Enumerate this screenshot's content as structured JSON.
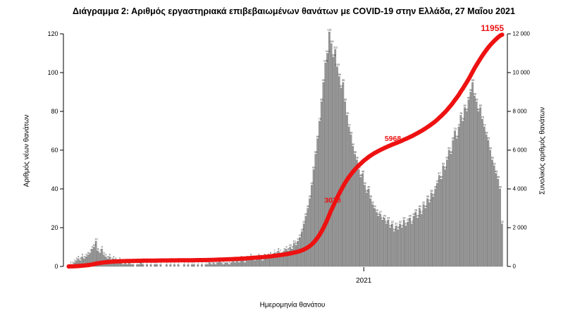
{
  "chart_data": {
    "type": "bar",
    "overlay_type": "line",
    "title": "Διάγραμμα 2: Αριθμός εργαστηριακά επιβεβαιωμένων θανάτων με COVID-19 στην Ελλάδα, 27 Μαΐου 2021",
    "xlabel": "Ημερομηνία θανάτου",
    "ylabel_left": "Αριθμός νέων θανάτων",
    "ylabel_right": "Συνολικός αριθμός θανάτων",
    "x_ticks": [
      {
        "label": "2021",
        "frac": 0.68
      }
    ],
    "ylim_left": [
      0,
      120
    ],
    "ylim_right": [
      0,
      12000
    ],
    "yticks_left": [
      0,
      20,
      40,
      60,
      80,
      100,
      120
    ],
    "ytick_labels_left": [
      "0",
      "20",
      "40",
      "60",
      "80",
      "100",
      "120"
    ],
    "yticks_right": [
      0,
      2000,
      4000,
      6000,
      8000,
      10000,
      12000
    ],
    "ytick_labels_right": [
      "0",
      "2 000",
      "4 000",
      "6 000",
      "8 000",
      "10 000",
      "12 000"
    ],
    "legend": "off",
    "grid": "off",
    "daily_new_deaths": [
      0,
      1,
      1,
      2,
      3,
      4,
      3,
      5,
      4,
      5,
      6,
      7,
      9,
      10,
      13,
      8,
      7,
      9,
      6,
      5,
      4,
      5,
      3,
      4,
      3,
      2,
      3,
      2,
      1,
      2,
      1,
      2,
      1,
      1,
      0,
      1,
      1,
      2,
      1,
      0,
      1,
      0,
      1,
      0,
      1,
      1,
      0,
      1,
      0,
      0,
      1,
      0,
      1,
      0,
      1,
      0,
      1,
      0,
      0,
      1,
      0,
      1,
      0,
      1,
      1,
      0,
      1,
      0,
      1,
      0,
      1,
      1,
      2,
      1,
      2,
      1,
      2,
      3,
      2,
      1,
      2,
      2,
      1,
      2,
      3,
      2,
      3,
      2,
      4,
      3,
      2,
      4,
      3,
      5,
      4,
      3,
      4,
      5,
      4,
      3,
      5,
      4,
      5,
      6,
      5,
      7,
      6,
      8,
      7,
      6,
      8,
      9,
      8,
      10,
      9,
      12,
      11,
      13,
      15,
      18,
      22,
      26,
      30,
      35,
      42,
      50,
      58,
      66,
      75,
      85,
      95,
      105,
      110,
      121,
      115,
      108,
      112,
      103,
      98,
      92,
      95,
      85,
      78,
      72,
      68,
      62,
      58,
      55,
      50,
      46,
      48,
      42,
      38,
      40,
      35,
      32,
      30,
      28,
      26,
      27,
      24,
      25,
      22,
      24,
      20,
      22,
      18,
      21,
      19,
      22,
      20,
      24,
      21,
      23,
      25,
      22,
      26,
      28,
      25,
      30,
      27,
      32,
      30,
      35,
      33,
      38,
      36,
      40,
      43,
      47,
      45,
      52,
      50,
      55,
      60,
      58,
      65,
      70,
      66,
      72,
      78,
      75,
      82,
      80,
      86,
      90,
      95,
      88,
      85,
      80,
      82,
      76,
      72,
      68,
      65,
      60,
      55,
      52,
      48,
      45,
      40,
      22
    ],
    "cumulative_final": 11955,
    "annotations": [
      {
        "text": "3078",
        "bin": 136,
        "value": 3300,
        "dx": -4,
        "size": 10.5,
        "under_line": true
      },
      {
        "text": "5968",
        "bin": 166,
        "value": 6470,
        "dx": -2,
        "size": 10.5,
        "under_line": false
      },
      {
        "text": "11955",
        "bin": 216,
        "value": 12150,
        "dx": 0,
        "size": 12,
        "under_line": false
      }
    ],
    "bar_color": "#999999",
    "bar_edge_color": "#6e6e6e",
    "line_color": "#ee1111",
    "tiny_label_color": "#1a1a1a",
    "axis_color": "#000000"
  }
}
